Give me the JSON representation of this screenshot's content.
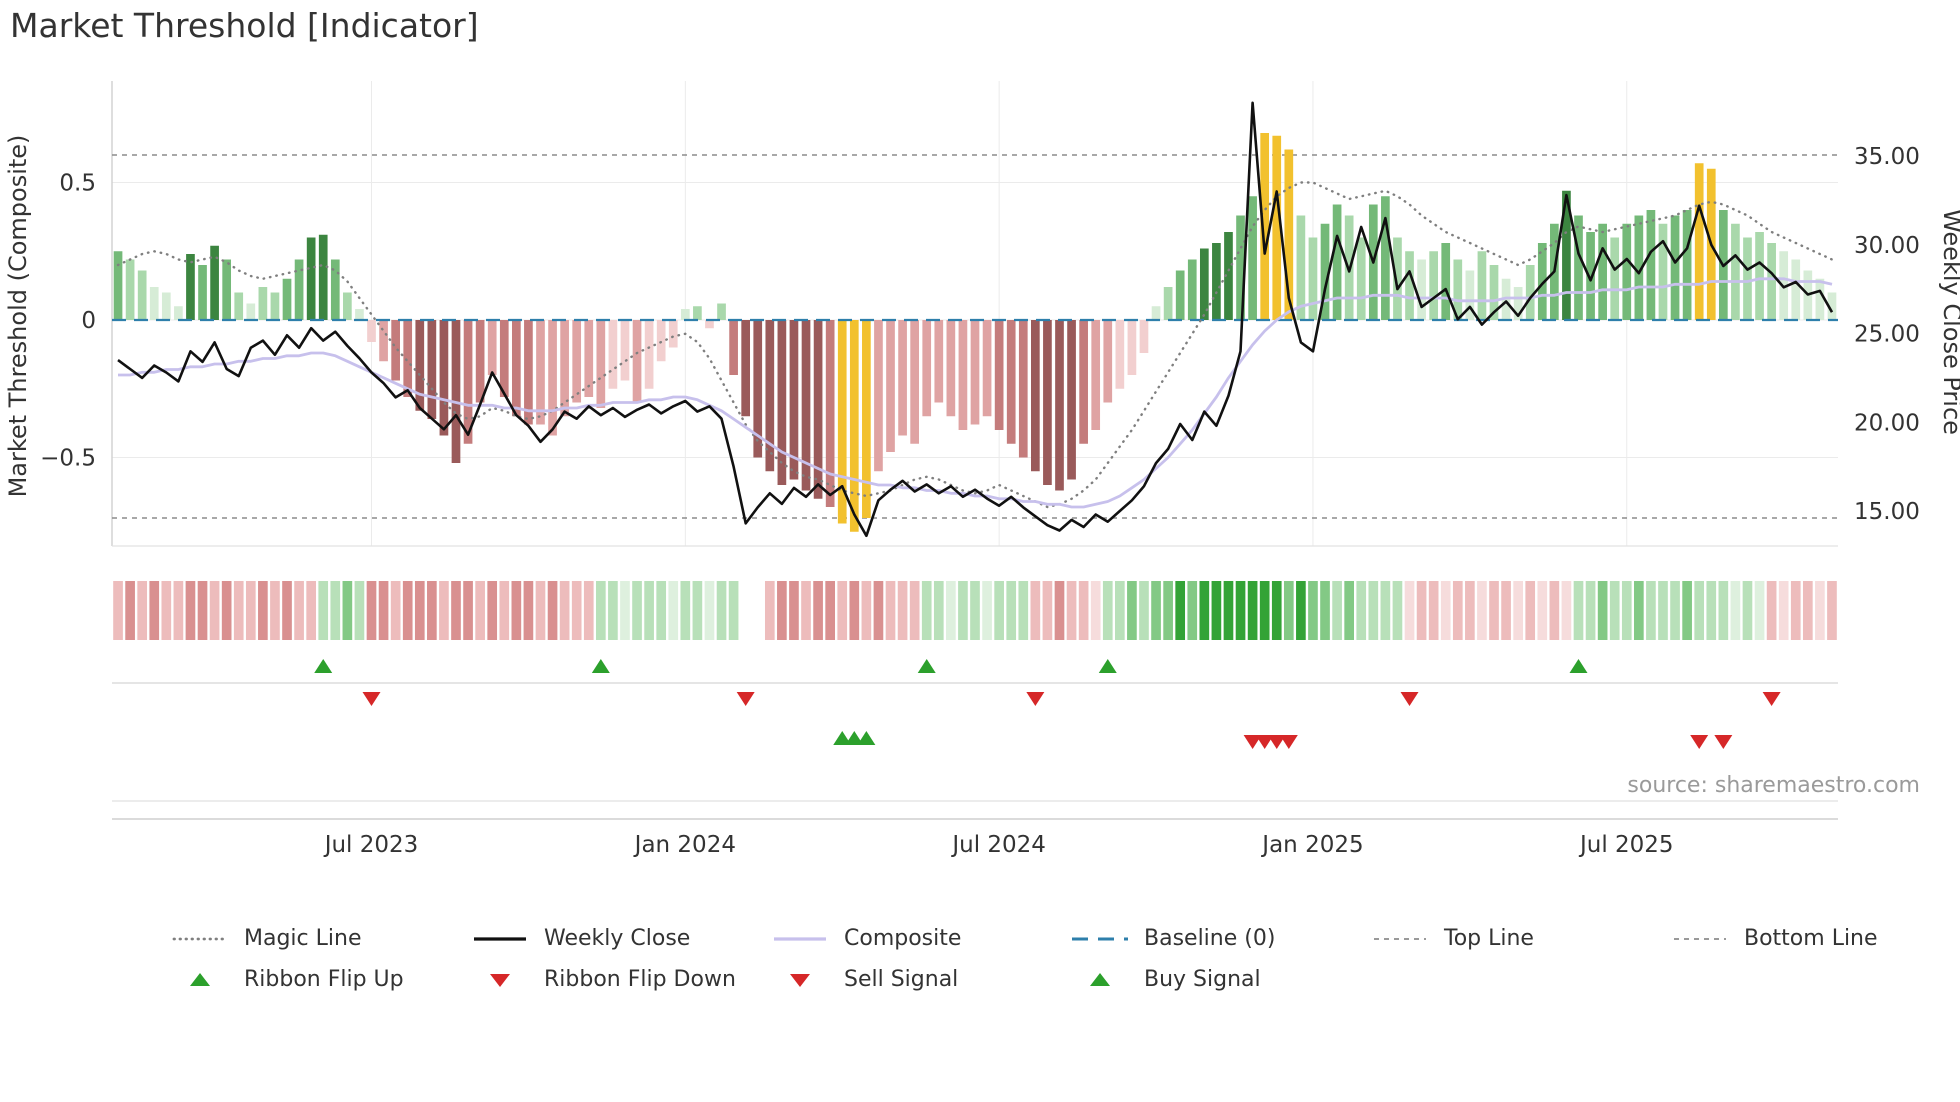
{
  "title": "Market Threshold [Indicator]",
  "source": "source: sharemaestro.com",
  "axes": {
    "left_label": "Market Threshold (Composite)",
    "right_label": "Weekly Close Price"
  },
  "legend": {
    "magic_line": "Magic Line",
    "weekly_close": "Weekly Close",
    "composite": "Composite",
    "baseline": "Baseline (0)",
    "top_line": "Top Line",
    "bottom_line": "Bottom Line",
    "ribbon_flip_up": "Ribbon Flip Up",
    "ribbon_flip_down": "Ribbon Flip Down",
    "sell_signal": "Sell Signal",
    "buy_signal": "Buy Signal"
  },
  "chart_data": {
    "type": "mixed",
    "title": "Market Threshold [Indicator]",
    "grid": true,
    "legend_position": "bottom",
    "x_ticks": [
      {
        "index": 21,
        "label": "Jul 2023"
      },
      {
        "index": 47,
        "label": "Jan 2024"
      },
      {
        "index": 73,
        "label": "Jul 2024"
      },
      {
        "index": 99,
        "label": "Jan 2025"
      },
      {
        "index": 125,
        "label": "Jul 2025"
      }
    ],
    "left_axis": {
      "label": "Market Threshold (Composite)",
      "range": [
        -0.85,
        0.87
      ],
      "ticks": [
        {
          "value": 0.5,
          "label": "0.5"
        },
        {
          "value": 0,
          "label": "0"
        },
        {
          "value": -0.5,
          "label": "−0.5"
        }
      ]
    },
    "right_axis": {
      "label": "Weekly Close Price",
      "range": [
        12.7,
        39.2
      ],
      "ticks": [
        {
          "value": 35,
          "label": "35.00"
        },
        {
          "value": 30,
          "label": "30.00"
        },
        {
          "value": 25,
          "label": "25.00"
        },
        {
          "value": 20,
          "label": "20.00"
        },
        {
          "value": 15,
          "label": "15.00"
        }
      ]
    },
    "baseline_value": 0,
    "top_line_value": 0.6,
    "bottom_line_value": -0.72,
    "series": {
      "composite_bars": {
        "values": [
          0.25,
          0.22,
          0.18,
          0.12,
          0.1,
          0.05,
          0.24,
          0.2,
          0.27,
          0.22,
          0.1,
          0.06,
          0.12,
          0.1,
          0.15,
          0.22,
          0.3,
          0.31,
          0.22,
          0.1,
          0.04,
          -0.08,
          -0.15,
          -0.22,
          -0.28,
          -0.33,
          -0.36,
          -0.42,
          -0.52,
          -0.45,
          -0.3,
          -0.2,
          -0.28,
          -0.35,
          -0.38,
          -0.38,
          -0.42,
          -0.35,
          -0.3,
          -0.28,
          -0.32,
          -0.25,
          -0.22,
          -0.3,
          -0.25,
          -0.15,
          -0.1,
          0.04,
          0.05,
          -0.03,
          0.06,
          -0.2,
          -0.35,
          -0.5,
          -0.55,
          -0.6,
          -0.58,
          -0.62,
          -0.65,
          -0.68,
          -0.74,
          -0.77,
          -0.72,
          -0.55,
          -0.48,
          -0.42,
          -0.45,
          -0.35,
          -0.3,
          -0.35,
          -0.4,
          -0.38,
          -0.35,
          -0.4,
          -0.45,
          -0.5,
          -0.55,
          -0.6,
          -0.62,
          -0.58,
          -0.45,
          -0.4,
          -0.3,
          -0.25,
          -0.2,
          -0.12,
          0.05,
          0.12,
          0.18,
          0.22,
          0.26,
          0.28,
          0.32,
          0.38,
          0.45,
          0.68,
          0.67,
          0.62,
          0.38,
          0.3,
          0.35,
          0.42,
          0.38,
          0.3,
          0.42,
          0.45,
          0.3,
          0.25,
          0.22,
          0.25,
          0.28,
          0.22,
          0.18,
          0.25,
          0.2,
          0.15,
          0.12,
          0.2,
          0.28,
          0.35,
          0.47,
          0.38,
          0.32,
          0.35,
          0.3,
          0.35,
          0.38,
          0.4,
          0.35,
          0.38,
          0.4,
          0.57,
          0.55,
          0.4,
          0.35,
          0.3,
          0.32,
          0.28,
          0.25,
          0.22,
          0.18,
          0.15,
          0.1
        ],
        "colors": [
          "g3",
          "g2",
          "g2",
          "g1",
          "g1",
          "g1",
          "g4",
          "g3",
          "g4",
          "g3",
          "g2",
          "g1",
          "g2",
          "g2",
          "g3",
          "g3",
          "g4",
          "g4",
          "g3",
          "g2",
          "g1",
          "r1",
          "r2",
          "r3",
          "r3",
          "r4",
          "r4",
          "r4",
          "r4",
          "r3",
          "r3",
          "r2",
          "r3",
          "r3",
          "r3",
          "r2",
          "r2",
          "r2",
          "r2",
          "r2",
          "r2",
          "r1",
          "r1",
          "r2",
          "r1",
          "r1",
          "r1",
          "g1",
          "g2",
          "r1",
          "g2",
          "r3",
          "r4",
          "r4",
          "r4",
          "r4",
          "r4",
          "r4",
          "r4",
          "r3",
          "gold",
          "gold",
          "gold",
          "r2",
          "r2",
          "r2",
          "r2",
          "r2",
          "r2",
          "r2",
          "r2",
          "r2",
          "r2",
          "r3",
          "r3",
          "r3",
          "r4",
          "r4",
          "r4",
          "r4",
          "r3",
          "r2",
          "r2",
          "r1",
          "r1",
          "r1",
          "g1",
          "g2",
          "g3",
          "g3",
          "g4",
          "g4",
          "g4",
          "g3",
          "g3",
          "gold",
          "gold",
          "gold",
          "g2",
          "g2",
          "g3",
          "g3",
          "g2",
          "g2",
          "g3",
          "g3",
          "g2",
          "g2",
          "g1",
          "g2",
          "g3",
          "g2",
          "g1",
          "g2",
          "g2",
          "g1",
          "g1",
          "g2",
          "g3",
          "g3",
          "g4",
          "g3",
          "g3",
          "g3",
          "g2",
          "g3",
          "g3",
          "g3",
          "g2",
          "g3",
          "g3",
          "gold",
          "gold",
          "g3",
          "g2",
          "g2",
          "g2",
          "g2",
          "g1",
          "g1",
          "g1",
          "g1",
          "g1"
        ]
      },
      "weekly_close": [
        23.5,
        23.0,
        22.5,
        23.2,
        22.8,
        22.3,
        24.0,
        23.4,
        24.5,
        23.0,
        22.6,
        24.2,
        24.6,
        23.8,
        24.9,
        24.2,
        25.3,
        24.6,
        25.1,
        24.3,
        23.6,
        22.8,
        22.2,
        21.4,
        21.8,
        20.8,
        20.2,
        19.6,
        20.4,
        19.3,
        21.0,
        22.8,
        21.6,
        20.4,
        19.8,
        18.9,
        19.6,
        20.6,
        20.2,
        20.9,
        20.4,
        20.8,
        20.3,
        20.7,
        21.0,
        20.5,
        20.9,
        21.2,
        20.6,
        20.9,
        20.2,
        17.5,
        14.3,
        15.2,
        16.0,
        15.4,
        16.3,
        15.8,
        16.5,
        15.9,
        16.4,
        14.8,
        13.6,
        15.6,
        16.2,
        16.7,
        16.1,
        16.5,
        16.0,
        16.4,
        15.8,
        16.2,
        15.7,
        15.3,
        15.8,
        15.2,
        14.7,
        14.2,
        13.9,
        14.5,
        14.1,
        14.8,
        14.4,
        15.0,
        15.6,
        16.4,
        17.7,
        18.5,
        19.9,
        19.0,
        20.6,
        19.8,
        21.5,
        24.0,
        38.0,
        29.5,
        33.0,
        27.0,
        24.5,
        24.0,
        27.5,
        30.5,
        28.5,
        31.0,
        29.0,
        31.5,
        27.5,
        28.5,
        26.5,
        27.0,
        27.5,
        25.8,
        26.5,
        25.5,
        26.2,
        26.8,
        26.0,
        27.0,
        27.8,
        28.5,
        32.8,
        29.5,
        28.0,
        29.8,
        28.6,
        29.2,
        28.4,
        29.6,
        30.2,
        29.0,
        29.8,
        32.2,
        30.0,
        28.8,
        29.4,
        28.6,
        29.0,
        28.4,
        27.6,
        27.9,
        27.2,
        27.4,
        26.2
      ],
      "magic_line": [
        0.2,
        0.22,
        0.24,
        0.25,
        0.24,
        0.22,
        0.21,
        0.22,
        0.23,
        0.21,
        0.18,
        0.16,
        0.15,
        0.16,
        0.17,
        0.18,
        0.19,
        0.2,
        0.18,
        0.14,
        0.08,
        0.02,
        -0.04,
        -0.1,
        -0.15,
        -0.2,
        -0.25,
        -0.3,
        -0.34,
        -0.36,
        -0.35,
        -0.32,
        -0.33,
        -0.35,
        -0.36,
        -0.35,
        -0.33,
        -0.3,
        -0.27,
        -0.24,
        -0.21,
        -0.18,
        -0.15,
        -0.12,
        -0.1,
        -0.08,
        -0.06,
        -0.05,
        -0.08,
        -0.14,
        -0.22,
        -0.3,
        -0.38,
        -0.44,
        -0.48,
        -0.52,
        -0.55,
        -0.57,
        -0.58,
        -0.6,
        -0.62,
        -0.63,
        -0.64,
        -0.63,
        -0.62,
        -0.6,
        -0.58,
        -0.57,
        -0.58,
        -0.6,
        -0.62,
        -0.63,
        -0.62,
        -0.6,
        -0.62,
        -0.64,
        -0.66,
        -0.68,
        -0.67,
        -0.65,
        -0.62,
        -0.58,
        -0.52,
        -0.46,
        -0.4,
        -0.33,
        -0.26,
        -0.19,
        -0.12,
        -0.05,
        0.02,
        0.1,
        0.18,
        0.26,
        0.34,
        0.4,
        0.45,
        0.48,
        0.5,
        0.5,
        0.48,
        0.46,
        0.44,
        0.45,
        0.46,
        0.47,
        0.45,
        0.42,
        0.38,
        0.35,
        0.32,
        0.3,
        0.28,
        0.26,
        0.24,
        0.22,
        0.2,
        0.22,
        0.25,
        0.28,
        0.32,
        0.34,
        0.33,
        0.32,
        0.33,
        0.34,
        0.35,
        0.36,
        0.37,
        0.38,
        0.4,
        0.42,
        0.43,
        0.42,
        0.4,
        0.38,
        0.35,
        0.32,
        0.3,
        0.28,
        0.26,
        0.24,
        0.22
      ],
      "composite_line": [
        -0.2,
        -0.2,
        -0.19,
        -0.19,
        -0.18,
        -0.18,
        -0.17,
        -0.17,
        -0.16,
        -0.16,
        -0.15,
        -0.15,
        -0.14,
        -0.14,
        -0.13,
        -0.13,
        -0.12,
        -0.12,
        -0.13,
        -0.15,
        -0.17,
        -0.19,
        -0.21,
        -0.23,
        -0.25,
        -0.27,
        -0.28,
        -0.29,
        -0.3,
        -0.31,
        -0.31,
        -0.31,
        -0.32,
        -0.32,
        -0.33,
        -0.33,
        -0.33,
        -0.32,
        -0.32,
        -0.31,
        -0.31,
        -0.3,
        -0.3,
        -0.3,
        -0.29,
        -0.29,
        -0.28,
        -0.28,
        -0.29,
        -0.31,
        -0.33,
        -0.36,
        -0.39,
        -0.42,
        -0.45,
        -0.48,
        -0.5,
        -0.52,
        -0.54,
        -0.56,
        -0.57,
        -0.58,
        -0.59,
        -0.6,
        -0.6,
        -0.61,
        -0.61,
        -0.62,
        -0.62,
        -0.63,
        -0.63,
        -0.64,
        -0.64,
        -0.65,
        -0.65,
        -0.66,
        -0.66,
        -0.67,
        -0.67,
        -0.68,
        -0.68,
        -0.67,
        -0.66,
        -0.64,
        -0.61,
        -0.58,
        -0.54,
        -0.5,
        -0.45,
        -0.4,
        -0.34,
        -0.28,
        -0.21,
        -0.15,
        -0.09,
        -0.04,
        0.0,
        0.03,
        0.05,
        0.06,
        0.07,
        0.08,
        0.08,
        0.08,
        0.09,
        0.09,
        0.09,
        0.08,
        0.08,
        0.08,
        0.08,
        0.07,
        0.07,
        0.07,
        0.07,
        0.08,
        0.08,
        0.08,
        0.09,
        0.09,
        0.1,
        0.1,
        0.1,
        0.11,
        0.11,
        0.11,
        0.12,
        0.12,
        0.12,
        0.13,
        0.13,
        0.13,
        0.14,
        0.14,
        0.14,
        0.14,
        0.15,
        0.15,
        0.15,
        0.14,
        0.14,
        0.14,
        0.13
      ]
    },
    "ribbon": [
      "r1",
      "r2",
      "r1",
      "r2",
      "r1",
      "r1",
      "r2",
      "r2",
      "r1",
      "r2",
      "r1",
      "r1",
      "r2",
      "r1",
      "r2",
      "r1",
      "r1",
      "g1",
      "g1",
      "g2",
      "g1",
      "r2",
      "r2",
      "r1",
      "r2",
      "r2",
      "r2",
      "r1",
      "r2",
      "r2",
      "r1",
      "r2",
      "r1",
      "r2",
      "r2",
      "r1",
      "r2",
      "r1",
      "r1",
      "r1",
      "g1",
      "g1",
      "g0",
      "g1",
      "g1",
      "g1",
      "g0",
      "g1",
      "g1",
      "g0",
      "g1",
      "g1",
      "w",
      "w",
      "r1",
      "r2",
      "r2",
      "r1",
      "r2",
      "r2",
      "r1",
      "r2",
      "r1",
      "r2",
      "r1",
      "r1",
      "r1",
      "g1",
      "g1",
      "g0",
      "g1",
      "g1",
      "g0",
      "g1",
      "g1",
      "g1",
      "r1",
      "r1",
      "r2",
      "r1",
      "r1",
      "r0",
      "g1",
      "g1",
      "g2",
      "g1",
      "g2",
      "g2",
      "g3",
      "g2",
      "g3",
      "g3",
      "g3",
      "g3",
      "g3",
      "g3",
      "g3",
      "g2",
      "g3",
      "g2",
      "g2",
      "g1",
      "g2",
      "g1",
      "g1",
      "g1",
      "g1",
      "r0",
      "r1",
      "r1",
      "r0",
      "r1",
      "r1",
      "r0",
      "r1",
      "r1",
      "r0",
      "r1",
      "r0",
      "r1",
      "r0",
      "g1",
      "g1",
      "g2",
      "g1",
      "g1",
      "g2",
      "g1",
      "g1",
      "g1",
      "g2",
      "g1",
      "g1",
      "g1",
      "g0",
      "g1",
      "g0",
      "r1",
      "r0",
      "r1",
      "r1",
      "r0",
      "r1"
    ],
    "signals": {
      "ribbon_flip_up": [
        17,
        40,
        67,
        82,
        121
      ],
      "ribbon_flip_down": [
        21,
        52,
        76,
        107,
        137
      ],
      "buy": [
        60,
        61,
        62
      ],
      "sell": [
        94,
        95,
        96,
        97,
        131,
        133
      ]
    },
    "palette": {
      "bar_colors": {
        "g1": "#d6ecd6",
        "g2": "#a9d8ab",
        "g3": "#74b978",
        "g4": "#3c8540",
        "r1": "#f2cfcf",
        "r2": "#dfa3a3",
        "r3": "#c47c7c",
        "r4": "#9a5a5a",
        "gold": "#f2c12e"
      },
      "ribbon_colors": {
        "r0": "#f6dcdc",
        "r1": "#edbcbc",
        "r2": "#d99090",
        "r3": "#c46666",
        "g0": "#def0de",
        "g1": "#b8e0b9",
        "g2": "#83c985",
        "g3": "#33a336",
        "w": "#ffffff"
      },
      "magic_line": "#7f7f7f",
      "weekly_close": "#111111",
      "composite_line": "#c7c0ec",
      "baseline": "#2e7fab",
      "guide_lines": "#8c8c8c",
      "flip_up": "#2ca02c",
      "flip_down": "#d62728",
      "buy": "#2ca02c",
      "sell": "#d62728",
      "gridline": "#ebebeb",
      "axis_text": "#333333",
      "source_text": "#9a9a9a"
    }
  }
}
